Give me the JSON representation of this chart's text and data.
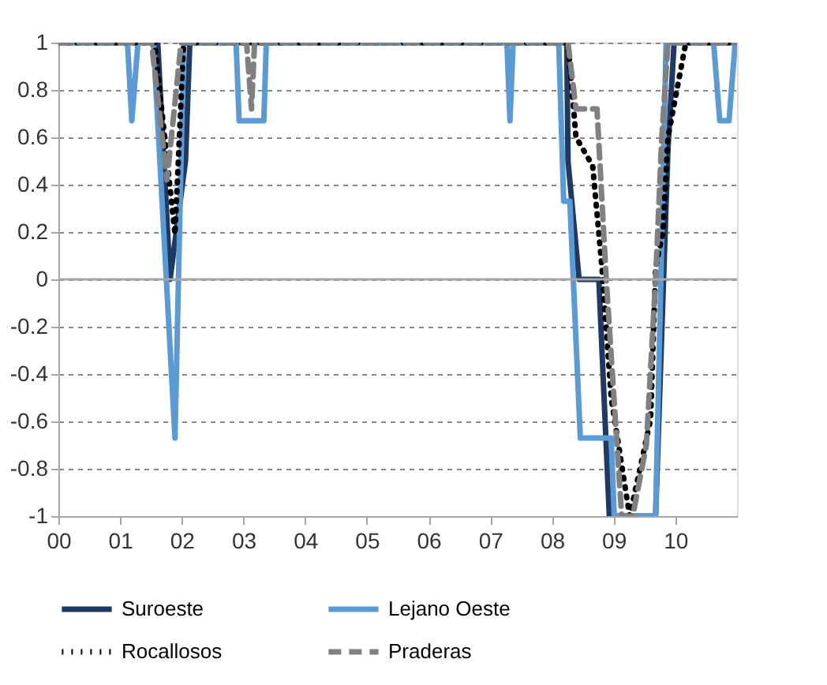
{
  "chart_data": {
    "type": "line",
    "xlim": [
      2000,
      2011
    ],
    "ylim": [
      -1,
      1
    ],
    "xticks": [
      {
        "value": 2000,
        "label": "00"
      },
      {
        "value": 2001,
        "label": "01"
      },
      {
        "value": 2002,
        "label": "02"
      },
      {
        "value": 2003,
        "label": "03"
      },
      {
        "value": 2004,
        "label": "04"
      },
      {
        "value": 2005,
        "label": "05"
      },
      {
        "value": 2006,
        "label": "06"
      },
      {
        "value": 2007,
        "label": "07"
      },
      {
        "value": 2008,
        "label": "08"
      },
      {
        "value": 2009,
        "label": "09"
      },
      {
        "value": 2010,
        "label": "10"
      }
    ],
    "yticks": [
      -1,
      -0.8,
      -0.6,
      -0.4,
      -0.2,
      0,
      0.2,
      0.4,
      0.6,
      0.8,
      1
    ],
    "grid": "y",
    "legend": "bottom",
    "marker": "none",
    "ref_lines": [
      {
        "axis": "y",
        "value": 0,
        "color": "#a6a6a6",
        "line_style": "solid"
      }
    ],
    "series": [
      {
        "name": "Suroeste",
        "color": "#1f3864",
        "line_style": "solid",
        "x": [
          2000,
          2001.61,
          2001.81,
          2002.06,
          2002.13,
          2008.24,
          2008.26,
          2008.44,
          2008.76,
          2008.93,
          2009.68,
          2009.88,
          2009.98,
          2011
        ],
        "values": [
          1,
          1,
          0,
          0.5,
          1,
          1,
          0.5,
          0,
          0,
          -1,
          -1,
          0.55,
          1,
          1
        ]
      },
      {
        "name": "Lejano Oeste",
        "color": "#5b9bd5",
        "line_style": "solid",
        "x": [
          2000,
          2001.12,
          2001.19,
          2001.29,
          2001.54,
          2001.89,
          2002.03,
          2002.88,
          2002.93,
          2003.33,
          2003.37,
          2007.27,
          2007.32,
          2007.37,
          2008.11,
          2008.19,
          2008.29,
          2008.46,
          2008.96,
          2009.01,
          2009.68,
          2009.85,
          2010.62,
          2010.72,
          2010.87,
          2010.97
        ],
        "values": [
          1,
          1,
          0.67,
          1,
          1,
          -0.67,
          1,
          1,
          0.67,
          0.67,
          1,
          1,
          0.67,
          1,
          1,
          0.33,
          0.33,
          -0.67,
          -0.67,
          -1,
          -1,
          1,
          1,
          0.67,
          0.67,
          1
        ]
      },
      {
        "name": "Rocallosos",
        "color": "#000000",
        "line_style": "dotted",
        "x": [
          2000,
          2001.56,
          2001.89,
          2002.03,
          2008.26,
          2008.39,
          2008.66,
          2008.81,
          2008.96,
          2009.26,
          2009.6,
          2009.68,
          2009.8,
          2009.88,
          2010.17,
          2011
        ],
        "values": [
          1,
          1,
          0.19,
          1,
          1,
          0.6,
          0.48,
          0.05,
          -0.5,
          -1,
          -0.59,
          0.05,
          0.2,
          0.6,
          1,
          1
        ]
      },
      {
        "name": "Praderas",
        "color": "#808080",
        "line_style": "dashed",
        "x": [
          2000,
          2001.51,
          2001.76,
          2001.99,
          2003.05,
          2003.13,
          2003.18,
          2008.26,
          2008.39,
          2008.73,
          2008.88,
          2009.13,
          2009.31,
          2009.53,
          2009.68,
          2009.78,
          2009.88,
          2011
        ],
        "values": [
          1,
          1,
          0.42,
          1,
          1,
          0.72,
          1,
          1,
          0.72,
          0.72,
          0,
          -1,
          -1,
          -0.7,
          0,
          0.6,
          1,
          1
        ]
      }
    ]
  }
}
